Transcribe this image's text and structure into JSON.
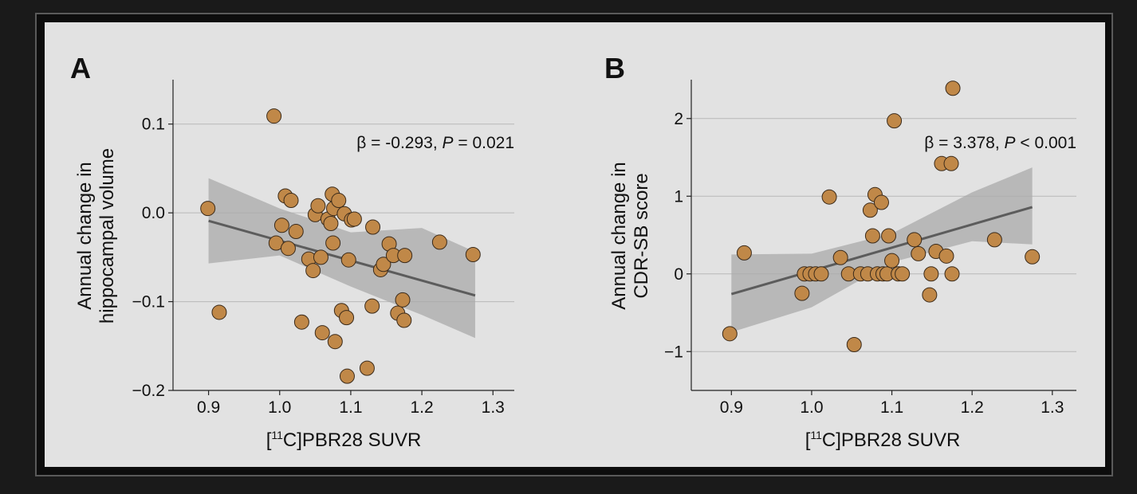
{
  "colors": {
    "point_fill": "#c08848",
    "point_stroke": "#3a2a1a",
    "line": "#5c5c5c",
    "band": "#a9a9a9",
    "grid": "#b8b8b8",
    "panel": "#e2e2e2",
    "frame": "#0d0d0d"
  },
  "chart_data": [
    {
      "type": "scatter",
      "panel_label": "A",
      "title": "",
      "xlabel_prefix": "[",
      "xlabel_sup": "11",
      "xlabel_suffix": "C]PBR28 SUVR",
      "ylabel_line1": "Annual change in",
      "ylabel_line2": "hippocampal volume",
      "annotation_prefix": "β = -0.293, ",
      "annotation_p": "P",
      "annotation_suffix": " = 0.021",
      "xlim": [
        0.85,
        1.33
      ],
      "ylim": [
        -0.2,
        0.15
      ],
      "xticks": [
        0.9,
        1.0,
        1.1,
        1.2,
        1.3
      ],
      "xtick_labels": [
        "0.9",
        "1.0",
        "1.1",
        "1.2",
        "1.3"
      ],
      "yticks": [
        -0.2,
        -0.1,
        0.0,
        0.1
      ],
      "ytick_labels": [
        "−0.2",
        "−0.1",
        "0.0",
        "0.1"
      ],
      "grid": true,
      "fit": {
        "x": [
          0.9,
          1.275
        ],
        "y": [
          -0.009,
          -0.093
        ]
      },
      "ci": {
        "x": [
          0.9,
          1.0,
          1.1,
          1.2,
          1.275
        ],
        "upper": [
          0.039,
          0.005,
          -0.022,
          -0.017,
          -0.044
        ],
        "lower": [
          -0.057,
          -0.048,
          -0.083,
          -0.115,
          -0.141
        ]
      },
      "x": [
        0.899,
        0.915,
        0.992,
        0.995,
        1.003,
        1.008,
        1.012,
        1.016,
        1.023,
        1.031,
        1.041,
        1.047,
        1.05,
        1.054,
        1.058,
        1.06,
        1.068,
        1.072,
        1.074,
        1.075,
        1.076,
        1.078,
        1.083,
        1.087,
        1.091,
        1.094,
        1.095,
        1.097,
        1.101,
        1.105,
        1.123,
        1.13,
        1.131,
        1.142,
        1.146,
        1.154,
        1.16,
        1.166,
        1.173,
        1.175,
        1.176,
        1.225,
        1.272
      ],
      "y": [
        0.005,
        -0.112,
        0.109,
        -0.034,
        -0.014,
        0.019,
        -0.04,
        0.014,
        -0.021,
        -0.123,
        -0.052,
        -0.065,
        -0.002,
        0.008,
        -0.05,
        -0.135,
        -0.007,
        -0.012,
        0.021,
        -0.034,
        0.005,
        -0.145,
        0.014,
        -0.11,
        -0.001,
        -0.118,
        -0.184,
        -0.053,
        -0.008,
        -0.007,
        -0.175,
        -0.105,
        -0.016,
        -0.064,
        -0.058,
        -0.035,
        -0.048,
        -0.113,
        -0.098,
        -0.121,
        -0.048,
        -0.033,
        -0.047
      ]
    },
    {
      "type": "scatter",
      "panel_label": "B",
      "title": "",
      "xlabel_prefix": "[",
      "xlabel_sup": "11",
      "xlabel_suffix": "C]PBR28 SUVR",
      "ylabel_line1": "Annual change in",
      "ylabel_line2": "CDR-SB score",
      "annotation_prefix": "β = 3.378, ",
      "annotation_p": "P",
      "annotation_suffix": " < 0.001",
      "xlim": [
        0.85,
        1.33
      ],
      "ylim": [
        -1.5,
        2.5
      ],
      "xticks": [
        0.9,
        1.0,
        1.1,
        1.2,
        1.3
      ],
      "xtick_labels": [
        "0.9",
        "1.0",
        "1.1",
        "1.2",
        "1.3"
      ],
      "yticks": [
        -1,
        0,
        1,
        2
      ],
      "ytick_labels": [
        "−1",
        "0",
        "1",
        "2"
      ],
      "grid": true,
      "fit": {
        "x": [
          0.9,
          1.275
        ],
        "y": [
          -0.26,
          0.86
        ]
      },
      "ci": {
        "x": [
          0.9,
          1.0,
          1.1,
          1.2,
          1.275
        ],
        "upper": [
          0.25,
          0.26,
          0.52,
          1.05,
          1.37
        ],
        "lower": [
          -0.75,
          -0.43,
          0.15,
          0.42,
          0.38
        ]
      },
      "x": [
        0.898,
        0.916,
        0.988,
        0.991,
        0.998,
        1.005,
        1.012,
        1.022,
        1.036,
        1.046,
        1.053,
        1.061,
        1.07,
        1.073,
        1.076,
        1.079,
        1.082,
        1.087,
        1.089,
        1.094,
        1.096,
        1.1,
        1.103,
        1.108,
        1.113,
        1.128,
        1.133,
        1.147,
        1.149,
        1.155,
        1.162,
        1.168,
        1.174,
        1.175,
        1.176,
        1.228,
        1.275
      ],
      "y": [
        -0.77,
        0.27,
        -0.25,
        0.0,
        0.0,
        0.0,
        0.0,
        0.99,
        0.21,
        0.0,
        -0.91,
        0.0,
        0.0,
        0.82,
        0.49,
        1.02,
        0.0,
        0.92,
        0.0,
        0.0,
        0.49,
        0.17,
        1.97,
        0.0,
        0.0,
        0.44,
        0.26,
        -0.27,
        0.0,
        0.29,
        1.42,
        0.23,
        1.42,
        0.0,
        2.39,
        0.44,
        0.22
      ]
    }
  ]
}
